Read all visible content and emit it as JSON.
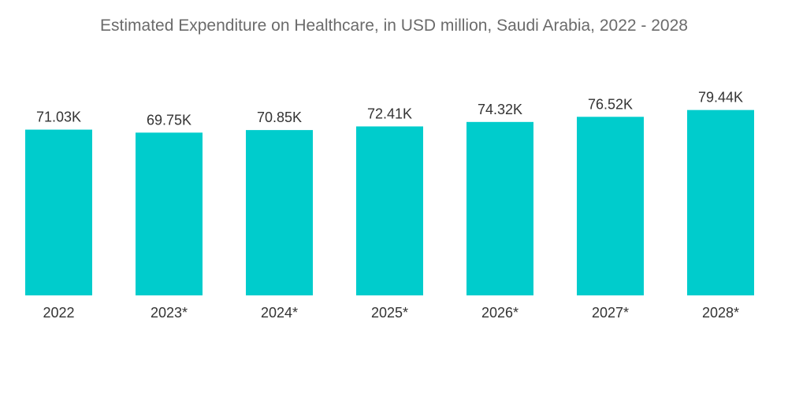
{
  "chart_data": {
    "type": "bar",
    "title": "Estimated Expenditure on Healthcare, in USD million, Saudi Arabia, 2022 - 2028",
    "xlabel": "",
    "ylabel": "",
    "categories": [
      "2022",
      "2023*",
      "2024*",
      "2025*",
      "2026*",
      "2027*",
      "2028*"
    ],
    "values": [
      71030,
      69750,
      70850,
      72410,
      74320,
      76520,
      79440
    ],
    "data_labels": [
      "71.03K",
      "69.75K",
      "70.85K",
      "72.41K",
      "74.32K",
      "76.52K",
      "79.44K"
    ],
    "ylim": [
      0,
      80000
    ],
    "grid": false,
    "legend": "none",
    "bar_color": "#00cccc"
  }
}
